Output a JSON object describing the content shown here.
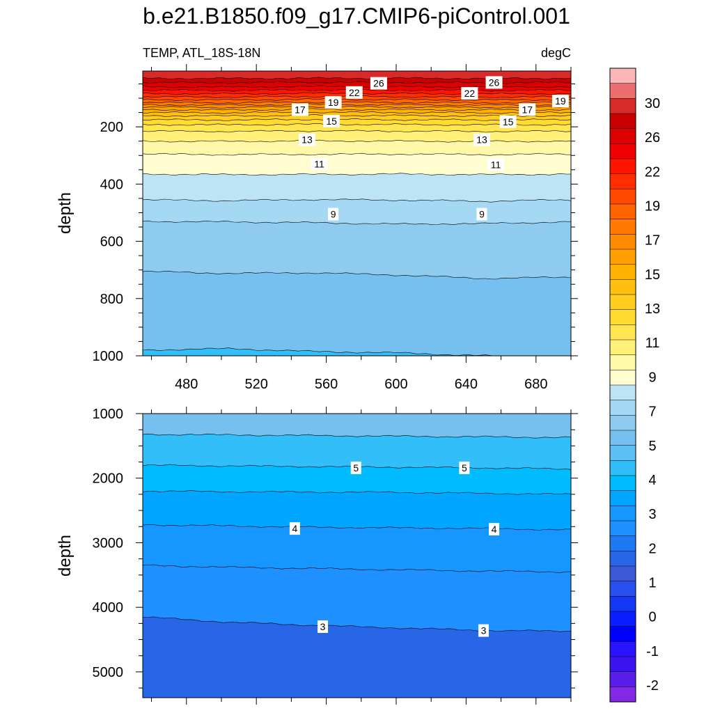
{
  "title": "b.e21.B1850.f09_g17.CMIP6-piControl.001",
  "chart_data": [
    {
      "type": "contour",
      "panel": "upper",
      "left_label": "TEMP, ATL_18S-18N",
      "right_label": "degC",
      "xlabel": "",
      "ylabel": "depth",
      "xlim": [
        455,
        700
      ],
      "ylim": [
        1000,
        5
      ],
      "y_reversed": true,
      "x_ticks": [
        480,
        520,
        560,
        600,
        640,
        680
      ],
      "y_ticks": [
        200,
        400,
        600,
        800,
        1000
      ],
      "contours": [
        {
          "level": 28,
          "depth": [
            30,
            31,
            30,
            30,
            31,
            30
          ]
        },
        {
          "level": 27,
          "depth": [
            45,
            46,
            44,
            45,
            46,
            45
          ]
        },
        {
          "level": 26,
          "depth": [
            60,
            61,
            59,
            60,
            61,
            60
          ]
        },
        {
          "level": 25,
          "depth": [
            72,
            73,
            71,
            72,
            73,
            72
          ]
        },
        {
          "level": 24,
          "depth": [
            84,
            85,
            83,
            84,
            85,
            84
          ]
        },
        {
          "level": 23,
          "depth": [
            95,
            96,
            94,
            95,
            96,
            95
          ]
        },
        {
          "level": 22,
          "depth": [
            105,
            106,
            104,
            105,
            106,
            105
          ]
        },
        {
          "level": 21,
          "depth": [
            115,
            116,
            114,
            115,
            116,
            115
          ]
        },
        {
          "level": 20,
          "depth": [
            123,
            124,
            122,
            123,
            124,
            123
          ]
        },
        {
          "level": 19,
          "depth": [
            131,
            132,
            130,
            131,
            132,
            131
          ]
        },
        {
          "level": 18,
          "depth": [
            140,
            141,
            139,
            140,
            141,
            140
          ]
        },
        {
          "level": 17,
          "depth": [
            150,
            151,
            149,
            150,
            151,
            150
          ]
        },
        {
          "level": 16,
          "depth": [
            161,
            162,
            160,
            161,
            162,
            161
          ]
        },
        {
          "level": 15,
          "depth": [
            175,
            176,
            174,
            175,
            176,
            175
          ]
        },
        {
          "level": 14,
          "depth": [
            192,
            193,
            191,
            192,
            193,
            192
          ]
        },
        {
          "level": 13,
          "depth": [
            215,
            216,
            214,
            215,
            216,
            215
          ]
        },
        {
          "level": 12,
          "depth": [
            250,
            251,
            249,
            250,
            251,
            250
          ]
        },
        {
          "level": 11,
          "depth": [
            295,
            297,
            296,
            295,
            297,
            295
          ]
        },
        {
          "level": 10,
          "depth": [
            365,
            367,
            366,
            365,
            367,
            365
          ]
        },
        {
          "level": 9,
          "depth": [
            455,
            458,
            454,
            456,
            460,
            455
          ]
        },
        {
          "level": 8,
          "depth": [
            530,
            532,
            535,
            540,
            538,
            532
          ]
        },
        {
          "level": 7,
          "depth": [
            705,
            712,
            710,
            718,
            730,
            725
          ]
        },
        {
          "level": 6,
          "depth": [
            980,
            975,
            985,
            990,
            1000,
            1010
          ]
        }
      ],
      "contour_labels": [
        {
          "text": "26",
          "x": 590,
          "depth": 48
        },
        {
          "text": "26",
          "x": 656,
          "depth": 45
        },
        {
          "text": "22",
          "x": 576,
          "depth": 80
        },
        {
          "text": "22",
          "x": 642,
          "depth": 83
        },
        {
          "text": "19",
          "x": 564,
          "depth": 115
        },
        {
          "text": "19",
          "x": 694,
          "depth": 110
        },
        {
          "text": "17",
          "x": 545,
          "depth": 140
        },
        {
          "text": "17",
          "x": 675,
          "depth": 140
        },
        {
          "text": "15",
          "x": 563,
          "depth": 180
        },
        {
          "text": "15",
          "x": 664,
          "depth": 182
        },
        {
          "text": "13",
          "x": 549,
          "depth": 245
        },
        {
          "text": "13",
          "x": 649,
          "depth": 245
        },
        {
          "text": "11",
          "x": 556,
          "depth": 330
        },
        {
          "text": "11",
          "x": 657,
          "depth": 332
        },
        {
          "text": "9",
          "x": 564,
          "depth": 505
        },
        {
          "text": "9",
          "x": 649,
          "depth": 505
        }
      ]
    },
    {
      "type": "contour",
      "panel": "lower",
      "xlabel": "",
      "ylabel": "depth",
      "xlim": [
        455,
        700
      ],
      "ylim": [
        5400,
        1000
      ],
      "y_reversed": true,
      "x_ticks": [
        480,
        520,
        560,
        600,
        640,
        680
      ],
      "y_ticks": [
        1000,
        2000,
        3000,
        4000,
        5000
      ],
      "contours": [
        {
          "level": 6,
          "depth": [
            1320,
            1330,
            1340,
            1350,
            1360,
            1370
          ]
        },
        {
          "level": 5,
          "depth": [
            1800,
            1810,
            1820,
            1830,
            1840,
            1860
          ]
        },
        {
          "level": 4.5,
          "depth": [
            2200,
            2210,
            2215,
            2220,
            2235,
            2250
          ]
        },
        {
          "level": 4,
          "depth": [
            2720,
            2740,
            2760,
            2770,
            2780,
            2800
          ]
        },
        {
          "level": 3.5,
          "depth": [
            3350,
            3380,
            3400,
            3420,
            3440,
            3450
          ]
        },
        {
          "level": 3,
          "depth": [
            4150,
            4230,
            4280,
            4320,
            4360,
            4370
          ]
        }
      ],
      "contour_labels": [
        {
          "text": "5",
          "x": 577,
          "depth": 1840
        },
        {
          "text": "5",
          "x": 639,
          "depth": 1840
        },
        {
          "text": "4",
          "x": 542,
          "depth": 2780
        },
        {
          "text": "4",
          "x": 656,
          "depth": 2790
        },
        {
          "text": "3",
          "x": 558,
          "depth": 4300
        },
        {
          "text": "3",
          "x": 650,
          "depth": 4360
        }
      ]
    }
  ],
  "colorbar": {
    "labels": [
      "30",
      "26",
      "22",
      "19",
      "17",
      "15",
      "13",
      "11",
      "9",
      "7",
      "5",
      "4",
      "3",
      "2",
      "1",
      "0",
      "-1",
      "-2"
    ],
    "colors": [
      "#fbb7b8",
      "#ec6e6e",
      "#d92a2a",
      "#c80000",
      "#dc0000",
      "#f00000",
      "#ff1400",
      "#ff2d00",
      "#ff4800",
      "#ff6400",
      "#ff7a00",
      "#ff8c00",
      "#ff9f00",
      "#ffb000",
      "#ffbf10",
      "#ffcd20",
      "#ffdb30",
      "#ffe650",
      "#fff07a",
      "#fff8a8",
      "#fffdd0",
      "#bde4f4",
      "#a5d8f2",
      "#8ecbee",
      "#76c0ef",
      "#5bc0f5",
      "#32bef8",
      "#00bbff",
      "#00a6ff",
      "#1597ff",
      "#1e90ff",
      "#1e78f0",
      "#2866e8",
      "#3c5ad8",
      "#2850f0",
      "#1437f5",
      "#0a1eff",
      "#0000ff",
      "#2814ff",
      "#3c14f0",
      "#5a1eeb",
      "#8228e6"
    ]
  }
}
